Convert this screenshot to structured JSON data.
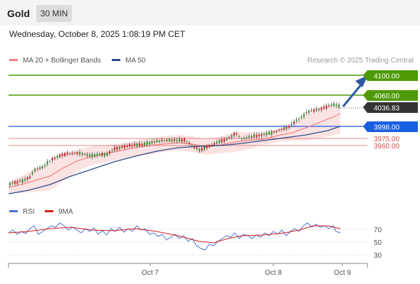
{
  "header": {
    "symbol": "Gold",
    "interval": "30 MIN",
    "datetime": "Wednesday, October 8, 2025 1:08:19 PM CET"
  },
  "legend": {
    "ma20_label": "MA 20 + Bollinger Bands",
    "ma50_label": "MA 50",
    "credit": "Research © 2025 Trading Central"
  },
  "rsi_legend": {
    "rsi_label": "RSI",
    "ma9_label": "9MA"
  },
  "colors": {
    "target_green": "#4e9a06",
    "pivot_blue": "#1a5fe0",
    "support_red": "#d9534f",
    "last_price_bg": "#333333",
    "ma20": "#f08080",
    "ma50": "#2c4f8c",
    "bands_fill": "#fbe3e3",
    "rsi_line": "#4a73d1",
    "rsi_ma": "#d22020"
  },
  "price_levels": {
    "target2": "4100.00",
    "target1": "4060.00",
    "last": "4036.83",
    "pivot": "3998.00",
    "support1": "3975.00",
    "support2": "3960.00"
  },
  "rsi_axis": [
    "70",
    "50",
    "30"
  ],
  "x_axis": [
    "Oct 7",
    "Oct 8",
    "Oct 9"
  ]
}
